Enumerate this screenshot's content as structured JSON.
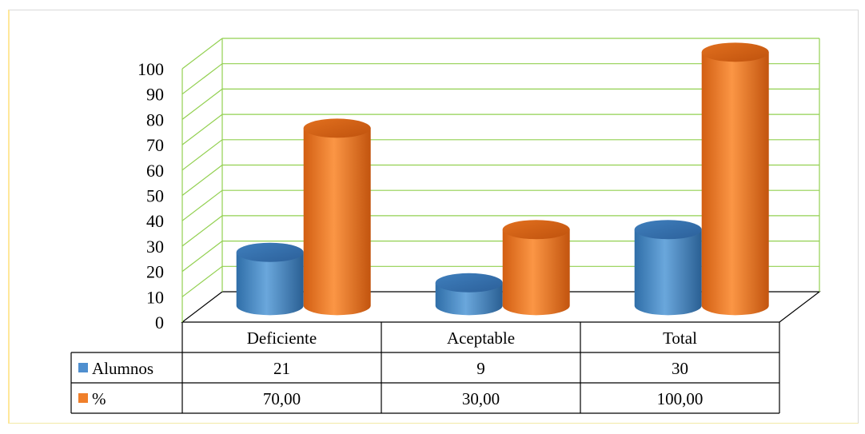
{
  "chart_data": {
    "type": "bar",
    "style": "3d-cylinder-with-data-table",
    "categories": [
      "Deficiente",
      "Aceptable",
      "Total"
    ],
    "series": [
      {
        "name": "Alumnos",
        "values": [
          21,
          9,
          30
        ],
        "labels": [
          "21",
          "9",
          "30"
        ],
        "color": "#4f8fcf"
      },
      {
        "name": "%",
        "values": [
          70,
          30,
          100
        ],
        "labels": [
          "70,00",
          "30,00",
          "100,00"
        ],
        "color": "#f07f2a"
      }
    ],
    "ylim": [
      0,
      100
    ],
    "yticks": [
      "0",
      "10",
      "20",
      "30",
      "40",
      "50",
      "60",
      "70",
      "80",
      "90",
      "100"
    ],
    "gridline_color": "#92d050",
    "grid": true,
    "legend": "data-table-left"
  }
}
